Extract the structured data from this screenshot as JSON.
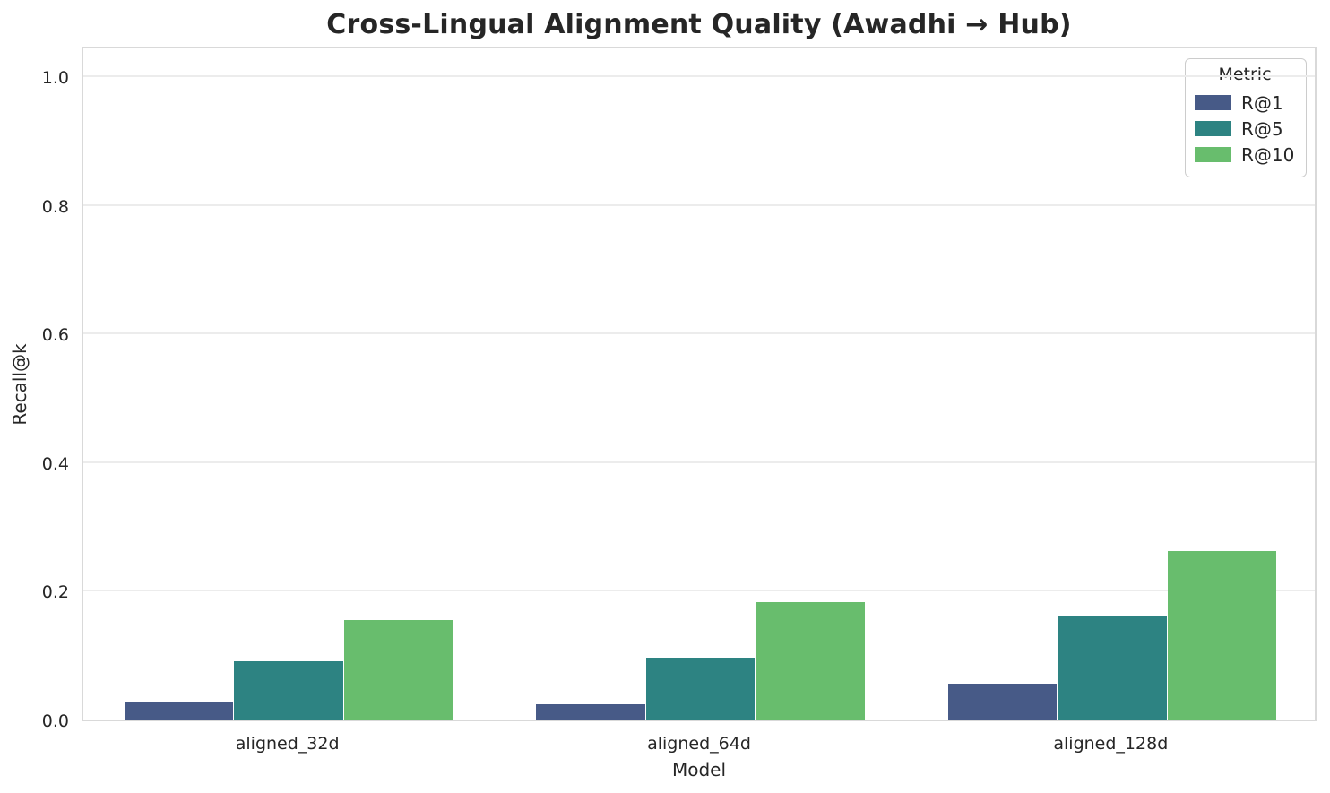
{
  "chart_data": {
    "type": "bar",
    "title": "Cross-Lingual Alignment Quality (Awadhi → Hub)",
    "xlabel": "Model",
    "ylabel": "Recall@k",
    "categories": [
      "aligned_32d",
      "aligned_64d",
      "aligned_128d"
    ],
    "series": [
      {
        "name": "R@1",
        "color": "#475a87",
        "values": [
          0.028,
          0.023,
          0.056
        ]
      },
      {
        "name": "R@5",
        "color": "#2d8382",
        "values": [
          0.091,
          0.096,
          0.162
        ]
      },
      {
        "name": "R@10",
        "color": "#68bd6d",
        "values": [
          0.154,
          0.183,
          0.262
        ]
      }
    ],
    "legend": {
      "title": "Metric",
      "position": "upper right"
    },
    "ylim": [
      0,
      1.05
    ],
    "yticks": [
      "0.0",
      "0.2",
      "0.4",
      "0.6",
      "0.8",
      "1.0"
    ],
    "grid": true,
    "colors": {
      "text": "#262626",
      "gridline": "#ececec",
      "spine": "#d9d9d9",
      "background": "#ffffff"
    }
  }
}
